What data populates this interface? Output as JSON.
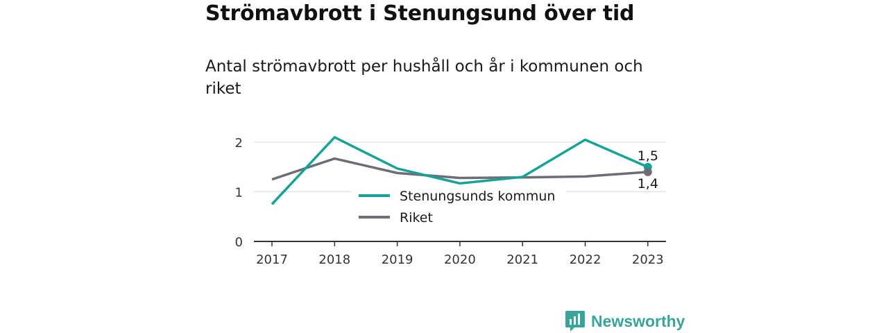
{
  "title": "Strömavbrott i Stenungsund över tid",
  "subtitle": "Antal strömavbrott per hushåll och år i kommunen och riket",
  "brand": {
    "name": "Newsworthy",
    "icon": "newsworthy-logo-icon",
    "color": "#3aa39a"
  },
  "chart_data": {
    "type": "line",
    "x": [
      "2017",
      "2018",
      "2019",
      "2020",
      "2021",
      "2022",
      "2023"
    ],
    "ylim": [
      0,
      2.2
    ],
    "yticks": [
      "0",
      "1",
      "2"
    ],
    "grid": true,
    "legend_placement": "center",
    "series": [
      {
        "name": "Stenungsunds kommun",
        "color": "#14a396",
        "values": [
          0.75,
          2.1,
          1.47,
          1.17,
          1.3,
          2.05,
          1.5
        ],
        "end_label": "1,5"
      },
      {
        "name": "Riket",
        "color": "#6e6c74",
        "values": [
          1.25,
          1.67,
          1.38,
          1.28,
          1.29,
          1.31,
          1.4
        ],
        "end_label": "1,4"
      }
    ]
  }
}
